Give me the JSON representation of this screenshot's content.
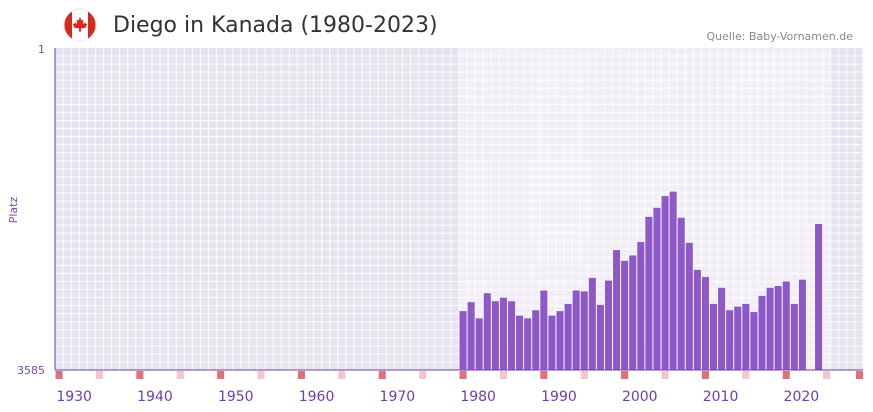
{
  "header": {
    "title": "Diego in Kanada (1980-2023)",
    "source": "Quelle: Baby-Vornamen.de"
  },
  "colors": {
    "bar": "#8e58c8",
    "band_dark": "#e6e2ee",
    "band_light": "#f1eef8",
    "tick_strong": "#e0707a",
    "tick_light": "#f4c6cc",
    "axis": "#6a3fb0"
  },
  "chart_data": {
    "type": "bar",
    "title": "Diego in Kanada (1980-2023)",
    "xlabel": "",
    "ylabel": "Platz",
    "ylim": [
      1,
      3585
    ],
    "y_reversed": true,
    "y_ticks": [
      "1",
      "3585"
    ],
    "xlim": [
      1928,
      2028
    ],
    "highlight_range": [
      1978,
      2023
    ],
    "x_ticks": [
      1930,
      1940,
      1950,
      1960,
      1970,
      1980,
      1990,
      2000,
      2010,
      2020
    ],
    "x_tick_labels": [
      "1930",
      "1940",
      "1950",
      "1960",
      "1970",
      "1980",
      "1990",
      "2000",
      "2010",
      "2020"
    ],
    "categories": [
      1978,
      1979,
      1980,
      1981,
      1982,
      1983,
      1984,
      1985,
      1986,
      1987,
      1988,
      1989,
      1990,
      1991,
      1992,
      1993,
      1994,
      1995,
      1996,
      1997,
      1998,
      1999,
      2000,
      2001,
      2002,
      2003,
      2004,
      2005,
      2006,
      2007,
      2008,
      2009,
      2010,
      2011,
      2012,
      2013,
      2014,
      2015,
      2016,
      2017,
      2018,
      2019,
      2020,
      2021,
      2022
    ],
    "values": [
      2930,
      2830,
      3010,
      2730,
      2820,
      2780,
      2820,
      2980,
      3010,
      2920,
      2700,
      2980,
      2930,
      2850,
      2700,
      2710,
      2560,
      2860,
      2590,
      2250,
      2370,
      2310,
      2160,
      1880,
      1780,
      1650,
      1600,
      1890,
      2170,
      2470,
      2550,
      2850,
      2670,
      2920,
      2880,
      2850,
      2940,
      2760,
      2670,
      2650,
      2600,
      2850,
      2580,
      3585,
      1960
    ]
  }
}
